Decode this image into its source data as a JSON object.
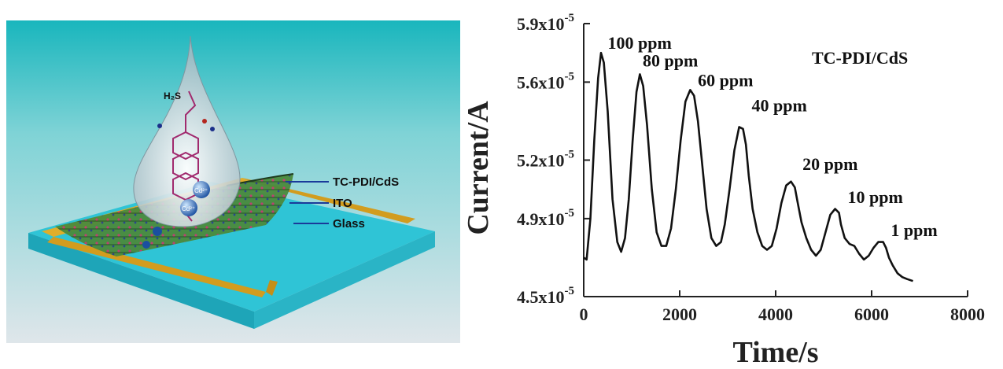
{
  "schematic": {
    "layer_labels": [
      "TC-PDI/CdS",
      "ITO",
      "Glass"
    ],
    "analyte": "H₂S",
    "ion_label": "Cd²⁺",
    "colors": {
      "background_top": "#19b6bd",
      "background_bottom": "#dfe6ea",
      "glass": "#2fc4d6",
      "ito": "#e0ae2a",
      "film": "#3e7a3a",
      "drop": "#eaf1f3",
      "molecule": "#a12a6e"
    }
  },
  "chart_data": {
    "type": "line",
    "xlabel": "Time/s",
    "ylabel": "Current/A",
    "legend": "TC-PDI/CdS",
    "xlim": [
      0,
      8000
    ],
    "ylim": [
      4.5e-05,
      5.9e-05
    ],
    "xticks": [
      0,
      2000,
      4000,
      6000,
      8000
    ],
    "xtick_labels": [
      "0",
      "2000",
      "4000",
      "6000",
      "8000"
    ],
    "yticks": [
      4.5e-05,
      4.9e-05,
      5.2e-05,
      5.6e-05,
      5.9e-05
    ],
    "ytick_mantissas": [
      "4.5x10",
      "4.9x10",
      "5.2x10",
      "5.6x10",
      "5.9x10"
    ],
    "ytick_exponent": "-5",
    "line_color": "#111111",
    "series": [
      {
        "x": [
          0,
          60,
          140,
          220,
          300,
          360,
          420,
          500,
          600,
          700,
          780,
          860,
          940,
          1020,
          1100,
          1170,
          1240,
          1320,
          1420,
          1520,
          1620,
          1720,
          1820,
          1920,
          2020,
          2120,
          2220,
          2300,
          2380,
          2460,
          2560,
          2660,
          2760,
          2860,
          2940,
          3040,
          3140,
          3240,
          3320,
          3380,
          3440,
          3520,
          3620,
          3720,
          3820,
          3920,
          4020,
          4120,
          4220,
          4320,
          4400,
          4460,
          4540,
          4640,
          4740,
          4840,
          4940,
          5040,
          5140,
          5240,
          5320,
          5360,
          5440,
          5540,
          5640,
          5740,
          5840,
          5940,
          6040,
          6140,
          6240,
          6300,
          6360,
          6440,
          6540,
          6640,
          6740,
          6860
        ],
        "y": [
          4.7e-05,
          4.69e-05,
          4.9e-05,
          5.3e-05,
          5.62e-05,
          5.75e-05,
          5.7e-05,
          5.45e-05,
          5e-05,
          4.78e-05,
          4.73e-05,
          4.8e-05,
          5e-05,
          5.3e-05,
          5.55e-05,
          5.64e-05,
          5.58e-05,
          5.38e-05,
          5.05e-05,
          4.83e-05,
          4.76e-05,
          4.76e-05,
          4.85e-05,
          5.05e-05,
          5.3e-05,
          5.5e-05,
          5.56e-05,
          5.53e-05,
          5.4e-05,
          5.2e-05,
          4.95e-05,
          4.8e-05,
          4.76e-05,
          4.78e-05,
          4.87e-05,
          5.05e-05,
          5.25e-05,
          5.37e-05,
          5.36e-05,
          5.28e-05,
          5.12e-05,
          4.95e-05,
          4.83e-05,
          4.76e-05,
          4.74e-05,
          4.76e-05,
          4.85e-05,
          4.98e-05,
          5.07e-05,
          5.09e-05,
          5.06e-05,
          4.98e-05,
          4.88e-05,
          4.8e-05,
          4.74e-05,
          4.71e-05,
          4.74e-05,
          4.83e-05,
          4.92e-05,
          4.95e-05,
          4.93e-05,
          4.87e-05,
          4.8e-05,
          4.77e-05,
          4.76e-05,
          4.72e-05,
          4.69e-05,
          4.71e-05,
          4.75e-05,
          4.78e-05,
          4.78e-05,
          4.75e-05,
          4.7e-05,
          4.66e-05,
          4.62e-05,
          4.6e-05,
          4.59e-05,
          4.58e-05
        ]
      }
    ],
    "annotations": [
      {
        "text": "100 ppm",
        "x": 500,
        "y": 5.77e-05
      },
      {
        "text": "80 ppm",
        "x": 1230,
        "y": 5.68e-05
      },
      {
        "text": "60 ppm",
        "x": 2380,
        "y": 5.58e-05
      },
      {
        "text": "40 ppm",
        "x": 3500,
        "y": 5.45e-05
      },
      {
        "text": "20 ppm",
        "x": 4560,
        "y": 5.15e-05
      },
      {
        "text": "10 ppm",
        "x": 5500,
        "y": 4.98e-05
      },
      {
        "text": "1 ppm",
        "x": 6400,
        "y": 4.81e-05
      }
    ],
    "legend_position": "top-right"
  }
}
